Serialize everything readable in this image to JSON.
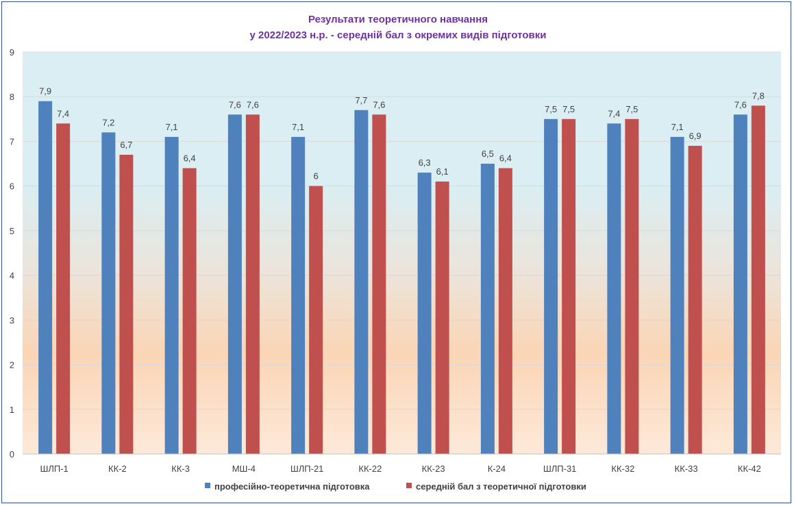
{
  "chart_data": {
    "type": "bar",
    "title_lines": [
      "Результати теоретичного навчання",
      "у  2022/2023 н.р. - середній бал з окремих видів підготовки"
    ],
    "categories": [
      "ШЛП-1",
      "КК-2",
      "КК-3",
      "МШ-4",
      "ШЛП-21",
      "КК-22",
      "КК-23",
      "К-24",
      "ШЛП-31",
      "КК-32",
      "КК-33",
      "КК-42"
    ],
    "series": [
      {
        "name": "професійно-теоретична підготовка",
        "color": "#4f81bd",
        "values": [
          7.9,
          7.2,
          7.1,
          7.6,
          7.1,
          7.7,
          6.3,
          6.5,
          7.5,
          7.4,
          7.1,
          7.6
        ],
        "labels": [
          "7,9",
          "7,2",
          "7,1",
          "7,6",
          "7,1",
          "7,7",
          "6,3",
          "6,5",
          "7,5",
          "7,4",
          "7,1",
          "7,6"
        ]
      },
      {
        "name": "середній бал з теоретичної підготовки",
        "color": "#c0504d",
        "values": [
          7.4,
          6.7,
          6.4,
          7.6,
          6.0,
          7.6,
          6.1,
          6.4,
          7.5,
          7.5,
          6.9,
          7.8
        ],
        "labels": [
          "7,4",
          "6,7",
          "6,4",
          "7,6",
          "6",
          "7,6",
          "6,1",
          "6,4",
          "7,5",
          "7,5",
          "6,9",
          "7,8"
        ]
      }
    ],
    "ylim": [
      0,
      9
    ],
    "yticks": [
      "0",
      "1",
      "2",
      "3",
      "4",
      "5",
      "6",
      "7",
      "8",
      "9"
    ],
    "grid": true,
    "legend_position": "bottom"
  }
}
